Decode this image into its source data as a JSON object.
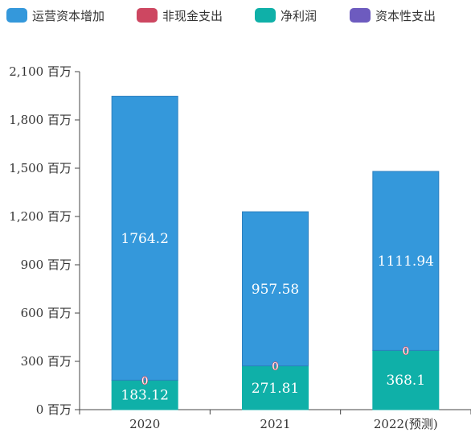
{
  "legend": {
    "items": [
      {
        "label": "运营资本增加",
        "color": "#3498db"
      },
      {
        "label": "非现金支出",
        "color": "#cd4761"
      },
      {
        "label": "净利润",
        "color": "#0fb0a8"
      },
      {
        "label": "资本性支出",
        "color": "#6d5bbf"
      }
    ]
  },
  "chart_data": {
    "type": "bar",
    "stacked": true,
    "categories": [
      "2020",
      "2021",
      "2022(预测)"
    ],
    "series": [
      {
        "name": "净利润",
        "color": "#0fb0a8",
        "values": [
          183.12,
          271.81,
          368.1
        ]
      },
      {
        "name": "非现金支出",
        "color": "#cd4761",
        "values": [
          0,
          0,
          0
        ]
      },
      {
        "name": "运营资本增加",
        "color": "#3498db",
        "values": [
          1764.2,
          957.58,
          1111.94
        ]
      },
      {
        "name": "资本性支出",
        "color": "#6d5bbf",
        "values": [
          0,
          0,
          0
        ]
      }
    ],
    "data_labels": [
      {
        "series": "运营资本增加",
        "texts": [
          "1764.2",
          "957.58",
          "1111.94"
        ]
      },
      {
        "series": "净利润",
        "texts": [
          "183.12",
          "271.81",
          "368.1"
        ]
      },
      {
        "series": "非现金支出",
        "texts": [
          "0",
          "0",
          "0"
        ]
      }
    ],
    "y_ticks": [
      {
        "value": 0,
        "label": "0 百万"
      },
      {
        "value": 300,
        "label": "300 百万"
      },
      {
        "value": 600,
        "label": "600 百万"
      },
      {
        "value": 900,
        "label": "900 百万"
      },
      {
        "value": 1200,
        "label": "1,200 百万"
      },
      {
        "value": 1500,
        "label": "1,500 百万"
      },
      {
        "value": 1800,
        "label": "1,800 百万"
      },
      {
        "value": 2100,
        "label": "2,100 百万"
      }
    ],
    "ylim": [
      0,
      2100
    ],
    "grid": false,
    "legend_position": "top"
  }
}
